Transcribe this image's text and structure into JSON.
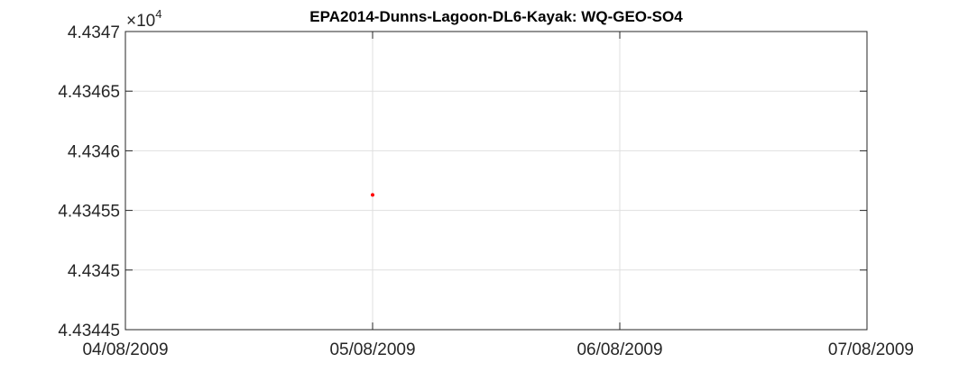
{
  "chart_data": {
    "type": "scatter",
    "title": "EPA2014-Dunns-Lagoon-DL6-Kayak: WQ-GEO-SO4",
    "xlabel": "",
    "ylabel": "",
    "x_tick_labels": [
      "04/08/2009",
      "05/08/2009",
      "06/08/2009",
      "07/08/2009"
    ],
    "y_exponent_base": "×10",
    "y_exponent_power": "4",
    "y_tick_labels": [
      "4.4347",
      "4.43465",
      "4.4346",
      "4.43455",
      "4.4345",
      "4.43445"
    ],
    "y_ticks": [
      4.4347,
      4.43465,
      4.4346,
      4.43455,
      4.4345,
      4.43445
    ],
    "ylim": [
      4.43445,
      4.4347
    ],
    "xlim": [
      "04/08/2009",
      "07/08/2009"
    ],
    "grid": true,
    "series": [
      {
        "color": "#ff0000",
        "points": [
          {
            "x": "05/08/2009",
            "y": 4.434563
          }
        ]
      }
    ]
  }
}
